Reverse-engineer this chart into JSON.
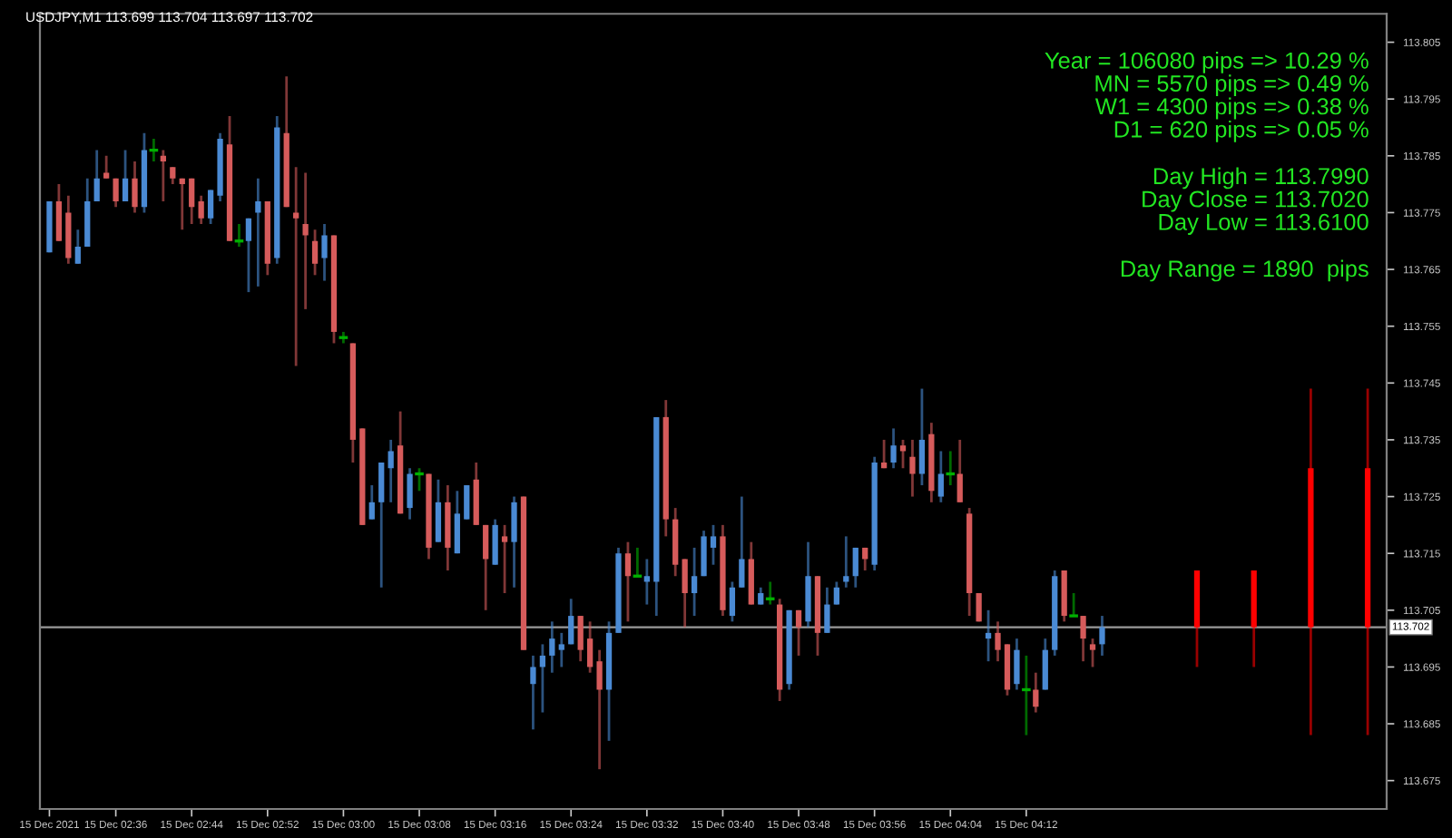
{
  "chart_data": {
    "type": "candlestick",
    "title": "USDJPY,M1 113.699 113.704 113.697 113.702",
    "annotations": [
      "Year = 106080 pips => 10.29 %\nMN = 5570 pips => 0.49 %\nW1 = 4300 pips => 0.38 %\nD1 = 620 pips => 0.05 %",
      "Day High = 113.7990\nDay Close = 113.7020\nDay Low = 113.6100",
      "Day Range = 1890  pips"
    ],
    "series": [
      {
        "x": [
          "2021-12-15T02:29",
          "2021-12-15T02:30",
          "2021-12-15T02:31",
          "2021-12-15T02:32",
          "2021-12-15T02:33",
          "2021-12-15T02:34",
          "2021-12-15T02:35",
          "2021-12-15T02:36",
          "2021-12-15T02:37",
          "2021-12-15T02:38",
          "2021-12-15T02:39",
          "2021-12-15T02:40",
          "2021-12-15T02:41",
          "2021-12-15T02:42",
          "2021-12-15T02:43",
          "2021-12-15T02:44",
          "2021-12-15T02:45",
          "2021-12-15T02:46",
          "2021-12-15T02:47",
          "2021-12-15T02:48",
          "2021-12-15T02:49",
          "2021-12-15T02:50",
          "2021-12-15T02:51",
          "2021-12-15T02:52",
          "2021-12-15T02:53",
          "2021-12-15T02:54",
          "2021-12-15T02:55",
          "2021-12-15T02:56",
          "2021-12-15T02:57",
          "2021-12-15T02:58",
          "2021-12-15T02:59",
          "2021-12-15T03:00",
          "2021-12-15T03:01",
          "2021-12-15T03:02",
          "2021-12-15T03:03",
          "2021-12-15T03:04",
          "2021-12-15T03:05",
          "2021-12-15T03:06",
          "2021-12-15T03:07",
          "2021-12-15T03:08",
          "2021-12-15T03:09",
          "2021-12-15T03:10",
          "2021-12-15T03:11",
          "2021-12-15T03:12",
          "2021-12-15T03:13",
          "2021-12-15T03:14",
          "2021-12-15T03:15",
          "2021-12-15T03:16",
          "2021-12-15T03:17",
          "2021-12-15T03:18",
          "2021-12-15T03:19",
          "2021-12-15T03:20",
          "2021-12-15T03:21",
          "2021-12-15T03:22",
          "2021-12-15T03:23",
          "2021-12-15T03:24",
          "2021-12-15T03:25",
          "2021-12-15T03:26",
          "2021-12-15T03:27",
          "2021-12-15T03:28",
          "2021-12-15T03:29",
          "2021-12-15T03:30",
          "2021-12-15T03:31",
          "2021-12-15T03:32",
          "2021-12-15T03:33",
          "2021-12-15T03:34",
          "2021-12-15T03:35",
          "2021-12-15T03:36",
          "2021-12-15T03:37",
          "2021-12-15T03:38",
          "2021-12-15T03:39",
          "2021-12-15T03:40",
          "2021-12-15T03:41",
          "2021-12-15T03:42",
          "2021-12-15T03:43",
          "2021-12-15T03:44",
          "2021-12-15T03:45",
          "2021-12-15T03:46",
          "2021-12-15T03:47",
          "2021-12-15T03:48",
          "2021-12-15T03:49",
          "2021-12-15T03:50",
          "2021-12-15T03:51",
          "2021-12-15T03:52",
          "2021-12-15T03:53",
          "2021-12-15T03:54",
          "2021-12-15T03:55",
          "2021-12-15T03:56",
          "2021-12-15T03:57",
          "2021-12-15T03:58",
          "2021-12-15T03:59",
          "2021-12-15T04:00",
          "2021-12-15T04:01",
          "2021-12-15T04:02",
          "2021-12-15T04:03",
          "2021-12-15T04:04",
          "2021-12-15T04:05",
          "2021-12-15T04:06",
          "2021-12-15T04:07",
          "2021-12-15T04:08",
          "2021-12-15T04:09",
          "2021-12-15T04:10",
          "2021-12-15T04:11",
          "2021-12-15T04:12",
          "2021-12-15T04:13",
          "2021-12-15T04:14",
          "2021-12-15T04:15",
          "2021-12-15T04:16",
          "2021-12-15T04:17",
          "2021-12-15T04:18",
          "2021-12-15T04:19",
          "2021-12-15T04:20"
        ],
        "ohlc": [
          [
            113.768,
            113.777,
            113.768,
            113.777
          ],
          [
            113.777,
            113.78,
            113.77,
            113.77
          ],
          [
            113.775,
            113.778,
            113.766,
            113.767
          ],
          [
            113.766,
            113.772,
            113.766,
            113.769
          ],
          [
            113.769,
            113.781,
            113.769,
            113.777
          ],
          [
            113.777,
            113.786,
            113.777,
            113.781
          ],
          [
            113.782,
            113.785,
            113.781,
            113.781
          ],
          [
            113.781,
            113.781,
            113.776,
            113.777
          ],
          [
            113.777,
            113.786,
            113.777,
            113.781
          ],
          [
            113.781,
            113.784,
            113.775,
            113.776
          ],
          [
            113.776,
            113.789,
            113.775,
            113.786
          ],
          [
            113.786,
            113.788,
            113.784,
            113.786
          ],
          [
            113.785,
            113.786,
            113.777,
            113.784
          ],
          [
            113.783,
            113.783,
            113.78,
            113.781
          ],
          [
            113.781,
            113.781,
            113.772,
            113.78
          ],
          [
            113.781,
            113.781,
            113.773,
            113.776
          ],
          [
            113.777,
            113.778,
            113.773,
            113.774
          ],
          [
            113.774,
            113.779,
            113.773,
            113.779
          ],
          [
            113.778,
            113.789,
            113.777,
            113.788
          ],
          [
            113.787,
            113.792,
            113.77,
            113.77
          ],
          [
            113.77,
            113.773,
            113.769,
            113.77
          ],
          [
            113.77,
            113.774,
            113.761,
            113.774
          ],
          [
            113.775,
            113.781,
            113.762,
            113.777
          ],
          [
            113.777,
            113.777,
            113.764,
            113.766
          ],
          [
            113.767,
            113.792,
            113.766,
            113.79
          ],
          [
            113.789,
            113.799,
            113.776,
            113.776
          ],
          [
            113.775,
            113.783,
            113.748,
            113.774
          ],
          [
            113.773,
            113.782,
            113.758,
            113.771
          ],
          [
            113.77,
            113.772,
            113.764,
            113.766
          ],
          [
            113.767,
            113.773,
            113.763,
            113.771
          ],
          [
            113.771,
            113.771,
            113.752,
            113.754
          ],
          [
            113.753,
            113.754,
            113.752,
            113.753
          ],
          [
            113.752,
            113.752,
            113.731,
            113.735
          ],
          [
            113.737,
            113.737,
            113.72,
            113.72
          ],
          [
            113.721,
            113.727,
            113.721,
            113.724
          ],
          [
            113.724,
            113.731,
            113.709,
            113.731
          ],
          [
            113.73,
            113.735,
            113.724,
            113.733
          ],
          [
            113.734,
            113.74,
            113.722,
            113.722
          ],
          [
            113.723,
            113.73,
            113.721,
            113.729
          ],
          [
            113.729,
            113.73,
            113.726,
            113.729
          ],
          [
            113.729,
            113.729,
            113.714,
            113.716
          ],
          [
            113.717,
            113.728,
            113.717,
            113.724
          ],
          [
            113.724,
            113.727,
            113.712,
            113.716
          ],
          [
            113.715,
            113.726,
            113.715,
            113.722
          ],
          [
            113.721,
            113.727,
            113.721,
            113.727
          ],
          [
            113.728,
            113.731,
            113.72,
            113.72
          ],
          [
            113.72,
            113.72,
            113.705,
            113.714
          ],
          [
            113.713,
            113.721,
            113.713,
            113.72
          ],
          [
            113.718,
            113.72,
            113.708,
            113.717
          ],
          [
            113.717,
            113.725,
            113.709,
            113.724
          ],
          [
            113.725,
            113.725,
            113.698,
            113.698
          ],
          [
            113.692,
            113.697,
            113.684,
            113.695
          ],
          [
            113.695,
            113.699,
            113.687,
            113.697
          ],
          [
            113.697,
            113.703,
            113.694,
            113.7
          ],
          [
            113.698,
            113.701,
            113.695,
            113.699
          ],
          [
            113.699,
            113.707,
            113.699,
            113.704
          ],
          [
            113.704,
            113.704,
            113.696,
            113.698
          ],
          [
            113.7,
            113.703,
            113.694,
            113.695
          ],
          [
            113.696,
            113.698,
            113.677,
            113.691
          ],
          [
            113.691,
            113.703,
            113.682,
            113.701
          ],
          [
            113.701,
            113.716,
            113.701,
            113.715
          ],
          [
            113.715,
            113.717,
            113.703,
            113.711
          ],
          [
            113.711,
            113.716,
            113.711,
            113.711
          ],
          [
            113.71,
            113.714,
            113.706,
            113.711
          ],
          [
            113.71,
            113.739,
            113.704,
            113.739
          ],
          [
            113.739,
            113.742,
            113.718,
            113.721
          ],
          [
            113.721,
            113.723,
            113.711,
            113.713
          ],
          [
            113.714,
            113.714,
            113.702,
            113.708
          ],
          [
            113.708,
            113.716,
            113.704,
            113.711
          ],
          [
            113.711,
            113.719,
            113.711,
            113.718
          ],
          [
            113.716,
            113.72,
            113.713,
            113.718
          ],
          [
            113.718,
            113.72,
            113.704,
            113.705
          ],
          [
            113.704,
            113.71,
            113.703,
            113.709
          ],
          [
            113.709,
            113.725,
            113.709,
            113.714
          ],
          [
            113.714,
            113.717,
            113.706,
            113.706
          ],
          [
            113.706,
            113.709,
            113.706,
            113.708
          ],
          [
            113.707,
            113.71,
            113.706,
            113.707
          ],
          [
            113.706,
            113.707,
            113.689,
            113.691
          ],
          [
            113.692,
            113.705,
            113.691,
            113.705
          ],
          [
            113.705,
            113.705,
            113.697,
            113.702
          ],
          [
            113.703,
            113.717,
            113.702,
            113.711
          ],
          [
            113.711,
            113.711,
            113.697,
            113.701
          ],
          [
            113.701,
            113.709,
            113.701,
            113.706
          ],
          [
            113.706,
            113.71,
            113.706,
            113.709
          ],
          [
            113.71,
            113.718,
            113.709,
            113.711
          ],
          [
            113.711,
            113.716,
            113.709,
            113.716
          ],
          [
            113.716,
            113.716,
            113.712,
            113.714
          ],
          [
            113.713,
            113.732,
            113.712,
            113.731
          ],
          [
            113.731,
            113.735,
            113.73,
            113.73
          ],
          [
            113.731,
            113.737,
            113.73,
            113.734
          ],
          [
            113.734,
            113.735,
            113.73,
            113.733
          ],
          [
            113.732,
            113.735,
            113.725,
            113.729
          ],
          [
            113.729,
            113.744,
            113.727,
            113.735
          ],
          [
            113.736,
            113.738,
            113.724,
            113.726
          ],
          [
            113.725,
            113.733,
            113.724,
            113.729
          ],
          [
            113.729,
            113.733,
            113.727,
            113.729
          ],
          [
            113.729,
            113.735,
            113.724,
            113.724
          ],
          [
            113.722,
            113.723,
            113.704,
            113.708
          ],
          [
            113.708,
            113.708,
            113.703,
            113.703
          ],
          [
            113.7,
            113.705,
            113.696,
            113.701
          ],
          [
            113.701,
            113.703,
            113.696,
            113.698
          ],
          [
            113.699,
            113.699,
            113.69,
            113.691
          ],
          [
            113.692,
            113.7,
            113.691,
            113.698
          ],
          [
            113.691,
            113.697,
            113.683,
            113.691
          ],
          [
            113.691,
            113.694,
            113.687,
            113.688
          ],
          [
            113.691,
            113.7,
            113.691,
            113.698
          ],
          [
            113.698,
            113.712,
            113.697,
            113.711
          ],
          [
            113.712,
            113.712,
            113.703,
            113.704
          ],
          [
            113.704,
            113.708,
            113.704,
            113.704
          ],
          [
            113.704,
            113.704,
            113.696,
            113.7
          ],
          [
            113.699,
            113.7,
            113.695,
            113.698
          ],
          [
            113.699,
            113.704,
            113.697,
            113.702
          ]
        ],
        "colors": [
          "#4a8ad4",
          "#d65b5b",
          "#d65b5b",
          "#4a8ad4",
          "#4a8ad4",
          "#4a8ad4",
          "#d65b5b",
          "#d65b5b",
          "#4a8ad4",
          "#d65b5b",
          "#4a8ad4",
          "#00b000",
          "#d65b5b",
          "#d65b5b",
          "#d65b5b",
          "#d65b5b",
          "#d65b5b",
          "#4a8ad4",
          "#4a8ad4",
          "#d65b5b",
          "#00b000",
          "#4a8ad4",
          "#4a8ad4",
          "#d65b5b",
          "#4a8ad4",
          "#d65b5b",
          "#d65b5b",
          "#d65b5b",
          "#d65b5b",
          "#4a8ad4",
          "#d65b5b",
          "#00b000",
          "#d65b5b",
          "#d65b5b",
          "#4a8ad4",
          "#4a8ad4",
          "#4a8ad4",
          "#d65b5b",
          "#4a8ad4",
          "#00b000",
          "#d65b5b",
          "#4a8ad4",
          "#d65b5b",
          "#4a8ad4",
          "#4a8ad4",
          "#d65b5b",
          "#d65b5b",
          "#4a8ad4",
          "#d65b5b",
          "#4a8ad4",
          "#d65b5b",
          "#4a8ad4",
          "#4a8ad4",
          "#4a8ad4",
          "#4a8ad4",
          "#4a8ad4",
          "#d65b5b",
          "#d65b5b",
          "#d65b5b",
          "#4a8ad4",
          "#4a8ad4",
          "#d65b5b",
          "#00b000",
          "#4a8ad4",
          "#4a8ad4",
          "#d65b5b",
          "#d65b5b",
          "#d65b5b",
          "#4a8ad4",
          "#4a8ad4",
          "#4a8ad4",
          "#d65b5b",
          "#4a8ad4",
          "#4a8ad4",
          "#d65b5b",
          "#4a8ad4",
          "#00b000",
          "#d65b5b",
          "#4a8ad4",
          "#d65b5b",
          "#4a8ad4",
          "#d65b5b",
          "#4a8ad4",
          "#4a8ad4",
          "#4a8ad4",
          "#4a8ad4",
          "#d65b5b",
          "#4a8ad4",
          "#d65b5b",
          "#4a8ad4",
          "#d65b5b",
          "#d65b5b",
          "#4a8ad4",
          "#d65b5b",
          "#4a8ad4",
          "#00b000",
          "#d65b5b",
          "#d65b5b",
          "#d65b5b",
          "#4a8ad4",
          "#d65b5b",
          "#d65b5b",
          "#4a8ad4",
          "#00b000",
          "#d65b5b",
          "#4a8ad4",
          "#4a8ad4",
          "#d65b5b",
          "#00b000",
          "#d65b5b",
          "#d65b5b",
          "#4a8ad4"
        ]
      },
      {
        "x": [
          "2021-12-15T04:30",
          "2021-12-15T04:36",
          "2021-12-15T04:42",
          "2021-12-15T04:48"
        ],
        "ohlc": [
          [
            113.712,
            113.712,
            113.695,
            113.702
          ],
          [
            113.712,
            113.712,
            113.695,
            113.702
          ],
          [
            113.73,
            113.744,
            113.683,
            113.702
          ],
          [
            113.73,
            113.744,
            113.683,
            113.702
          ]
        ],
        "color": "#ff0000"
      }
    ],
    "xlim": [
      "2021-12-15T02:28",
      "2021-12-15T04:50"
    ],
    "xticks": [
      {
        "value": "2021-12-15T02:29",
        "label": "15 Dec 2021"
      },
      {
        "value": "2021-12-15T02:36",
        "label": "15 Dec 02:36"
      },
      {
        "value": "2021-12-15T02:44",
        "label": "15 Dec 02:44"
      },
      {
        "value": "2021-12-15T02:52",
        "label": "15 Dec 02:52"
      },
      {
        "value": "2021-12-15T03:00",
        "label": "15 Dec 03:00"
      },
      {
        "value": "2021-12-15T03:08",
        "label": "15 Dec 03:08"
      },
      {
        "value": "2021-12-15T03:16",
        "label": "15 Dec 03:16"
      },
      {
        "value": "2021-12-15T03:24",
        "label": "15 Dec 03:24"
      },
      {
        "value": "2021-12-15T03:32",
        "label": "15 Dec 03:32"
      },
      {
        "value": "2021-12-15T03:40",
        "label": "15 Dec 03:40"
      },
      {
        "value": "2021-12-15T03:48",
        "label": "15 Dec 03:48"
      },
      {
        "value": "2021-12-15T03:56",
        "label": "15 Dec 03:56"
      },
      {
        "value": "2021-12-15T04:04",
        "label": "15 Dec 04:04"
      },
      {
        "value": "2021-12-15T04:12",
        "label": "15 Dec 04:12"
      }
    ],
    "ylim": [
      113.67,
      113.81
    ],
    "yticks": [
      113.675,
      113.685,
      113.695,
      113.705,
      113.715,
      113.725,
      113.735,
      113.745,
      113.755,
      113.765,
      113.775,
      113.785,
      113.795,
      113.805
    ],
    "ref_lines": [
      {
        "axis": "y",
        "value": 113.702,
        "label": "113.702",
        "color": "#9a9a9a"
      }
    ],
    "grid": false,
    "legend": false
  }
}
